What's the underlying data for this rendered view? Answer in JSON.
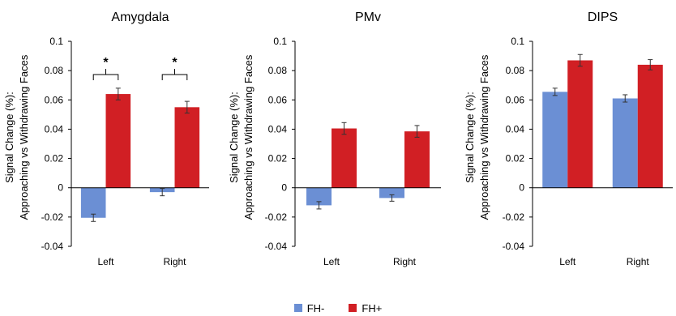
{
  "colors": {
    "fh_minus": "#6b8fd4",
    "fh_plus": "#d11f24",
    "axis": "#000000"
  },
  "legend": {
    "items": [
      {
        "label": "FH-",
        "color": "#6b8fd4"
      },
      {
        "label": "FH+",
        "color": "#d11f24"
      }
    ]
  },
  "chart_data": [
    {
      "type": "bar",
      "title": "Amygdala",
      "ylabel_line1": "Signal Change (%):",
      "ylabel_line2": "Approaching vs Withdrawing Faces",
      "categories": [
        "Left",
        "Right"
      ],
      "ylim": [
        -0.04,
        0.1
      ],
      "yticks": [
        "0.1",
        "0.08",
        "0.06",
        "0.04",
        "0.02",
        "0",
        "-0.02",
        "-0.04"
      ],
      "series": [
        {
          "name": "FH-",
          "values": [
            -0.0205,
            -0.003
          ],
          "errors": [
            0.0025,
            0.0025
          ]
        },
        {
          "name": "FH+",
          "values": [
            0.064,
            0.055
          ],
          "errors": [
            0.004,
            0.004
          ]
        }
      ],
      "significance": [
        "*",
        "*"
      ]
    },
    {
      "type": "bar",
      "title": "PMv",
      "ylabel_line1": "Signal Change (%):",
      "ylabel_line2": "Approaching vs Withdrawing Faces",
      "categories": [
        "Left",
        "Right"
      ],
      "ylim": [
        -0.04,
        0.1
      ],
      "yticks": [
        "0.1",
        "0.08",
        "0.06",
        "0.04",
        "0.02",
        "0",
        "-0.02",
        "-0.04"
      ],
      "series": [
        {
          "name": "FH-",
          "values": [
            -0.012,
            -0.007
          ],
          "errors": [
            0.0025,
            0.0022
          ]
        },
        {
          "name": "FH+",
          "values": [
            0.0405,
            0.0385
          ],
          "errors": [
            0.004,
            0.004
          ]
        }
      ],
      "significance": []
    },
    {
      "type": "bar",
      "title": "DIPS",
      "ylabel_line1": "Signal Change (%):",
      "ylabel_line2": "Approaching vs Withdrawing Faces",
      "categories": [
        "Left",
        "Right"
      ],
      "ylim": [
        -0.04,
        0.1
      ],
      "yticks": [
        "0.1",
        "0.08",
        "0.06",
        "0.04",
        "0.02",
        "0",
        "-0.02",
        "-0.04"
      ],
      "series": [
        {
          "name": "FH-",
          "values": [
            0.0655,
            0.061
          ],
          "errors": [
            0.0025,
            0.0025
          ]
        },
        {
          "name": "FH+",
          "values": [
            0.087,
            0.084
          ],
          "errors": [
            0.004,
            0.0035
          ]
        }
      ],
      "significance": []
    }
  ]
}
